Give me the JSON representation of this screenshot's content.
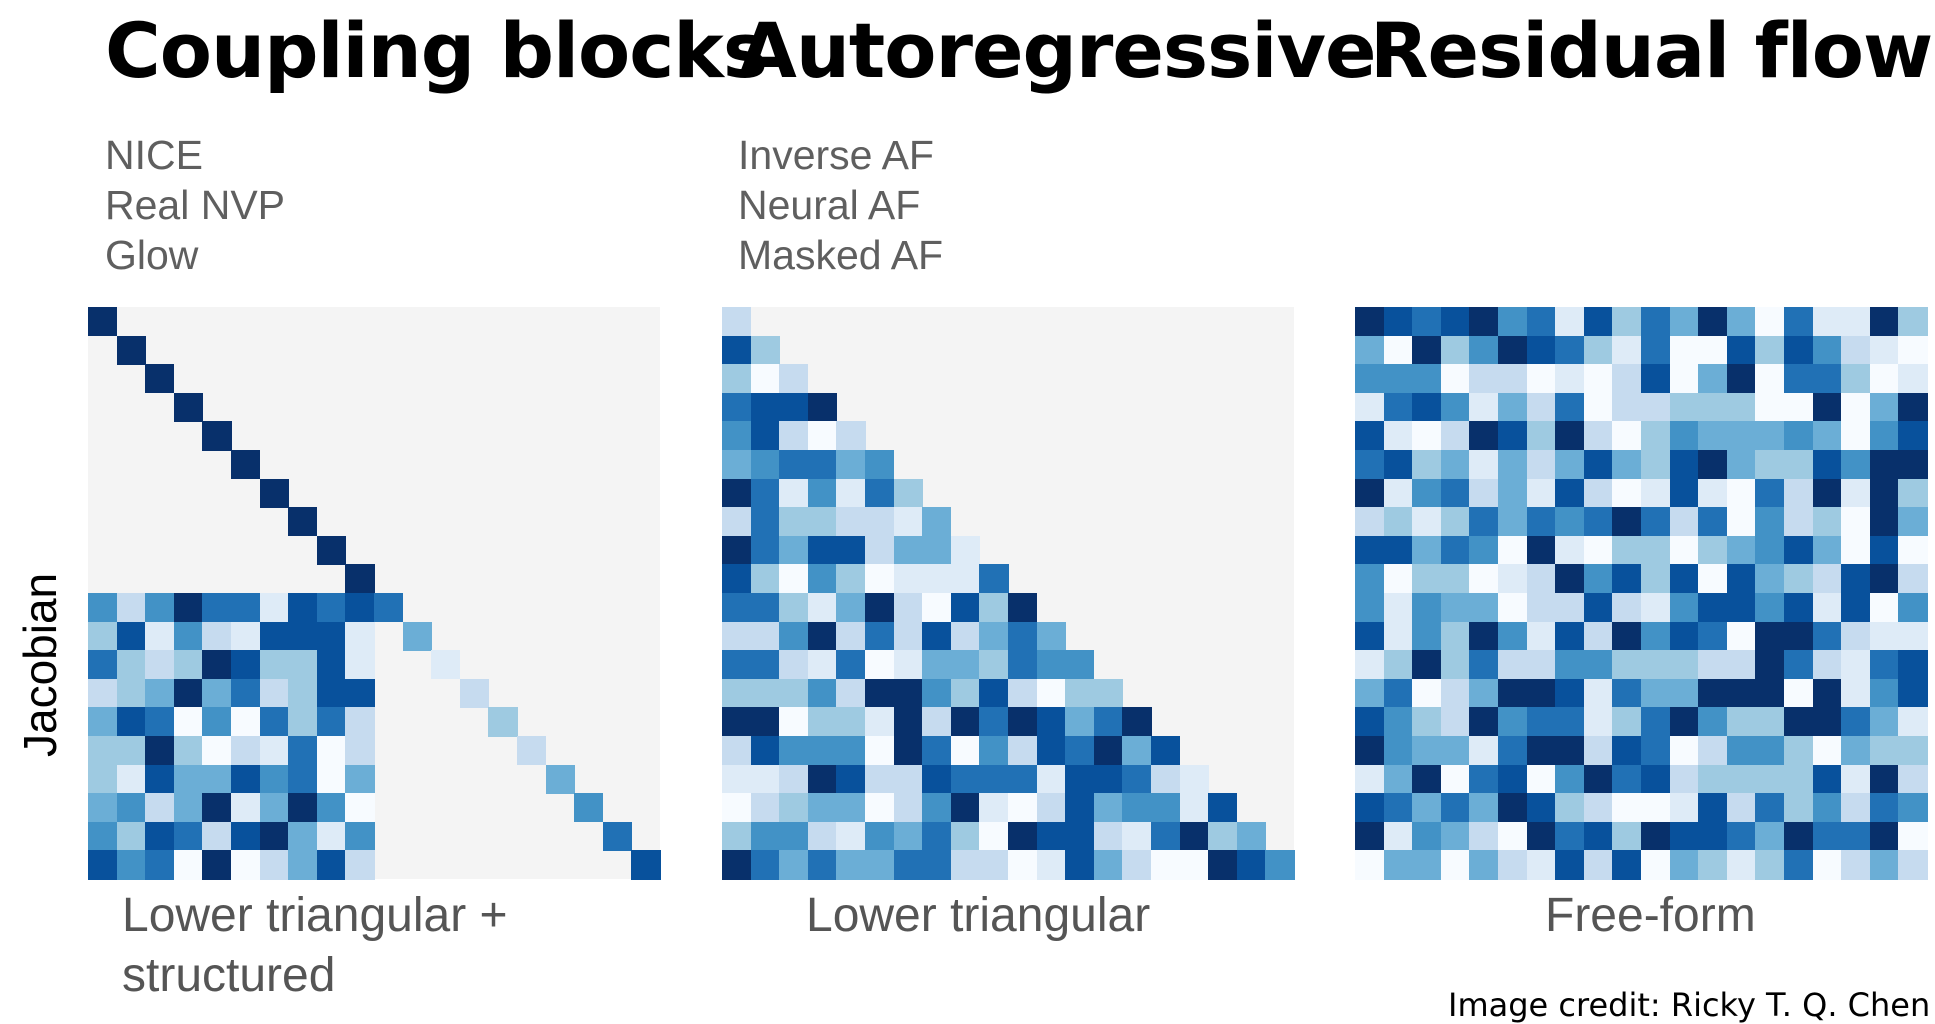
{
  "panels": [
    {
      "title": "Coupling blocks",
      "methods": [
        "NICE",
        "Real NVP",
        "Glow"
      ],
      "caption_lines": [
        "Lower triangular +",
        "structured"
      ],
      "pattern": "coupling"
    },
    {
      "title": "Autoregressive",
      "methods": [
        "Inverse AF",
        "Neural AF",
        "Masked AF"
      ],
      "caption_lines": [
        "Lower triangular"
      ],
      "pattern": "lower-triangular"
    },
    {
      "title": "Residual flows",
      "methods": [],
      "caption_lines": [
        "Free-form"
      ],
      "pattern": "free-form"
    }
  ],
  "y_axis_label": "Jacobian",
  "credit": "Image credit: Ricky T. Q. Chen",
  "matrix_size": 20,
  "colors": {
    "background": "#f4f4f4",
    "palette": [
      "#f7fbff",
      "#deebf7",
      "#c6dbef",
      "#9ecae1",
      "#6baed6",
      "#4292c6",
      "#2171b5",
      "#08519c",
      "#08306b"
    ]
  }
}
